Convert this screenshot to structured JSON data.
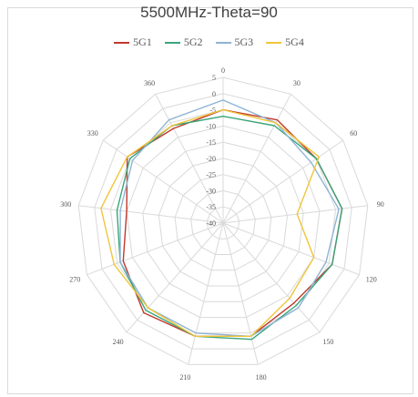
{
  "chart_data": {
    "type": "radar",
    "title": "5500MHz-Theta=90",
    "axis_categories": [
      "0",
      "30",
      "60",
      "90",
      "120",
      "150",
      "180",
      "210",
      "240",
      "270",
      "300",
      "330",
      "360"
    ],
    "radial_ticks": [
      5,
      0,
      -5,
      -10,
      -15,
      -20,
      -25,
      -30,
      -35,
      -40
    ],
    "rlim": [
      -40,
      5
    ],
    "grid": true,
    "legend": "top",
    "series": [
      {
        "name": "5G1",
        "color": "#c0392b",
        "values": [
          -5,
          -4,
          -5,
          -3,
          -4,
          -7,
          -4,
          -4,
          -3,
          -7,
          -10,
          -4,
          -7
        ]
      },
      {
        "name": "5G2",
        "color": "#3aa57a",
        "values": [
          -7,
          -6,
          -5,
          -3,
          -4,
          -6,
          -3,
          -4,
          -4,
          -6,
          -7,
          -5,
          -6
        ]
      },
      {
        "name": "5G3",
        "color": "#8eb4d4",
        "values": [
          -2,
          -5,
          -7,
          -4,
          -6,
          -5,
          -4,
          -5,
          -5,
          -6,
          -8,
          -6,
          -4
        ]
      },
      {
        "name": "5G4",
        "color": "#f0c53b",
        "values": [
          -5,
          -5,
          -4,
          -17,
          -10,
          -9,
          -4,
          -4,
          -5,
          -4,
          -2,
          -4,
          -6
        ]
      }
    ]
  }
}
